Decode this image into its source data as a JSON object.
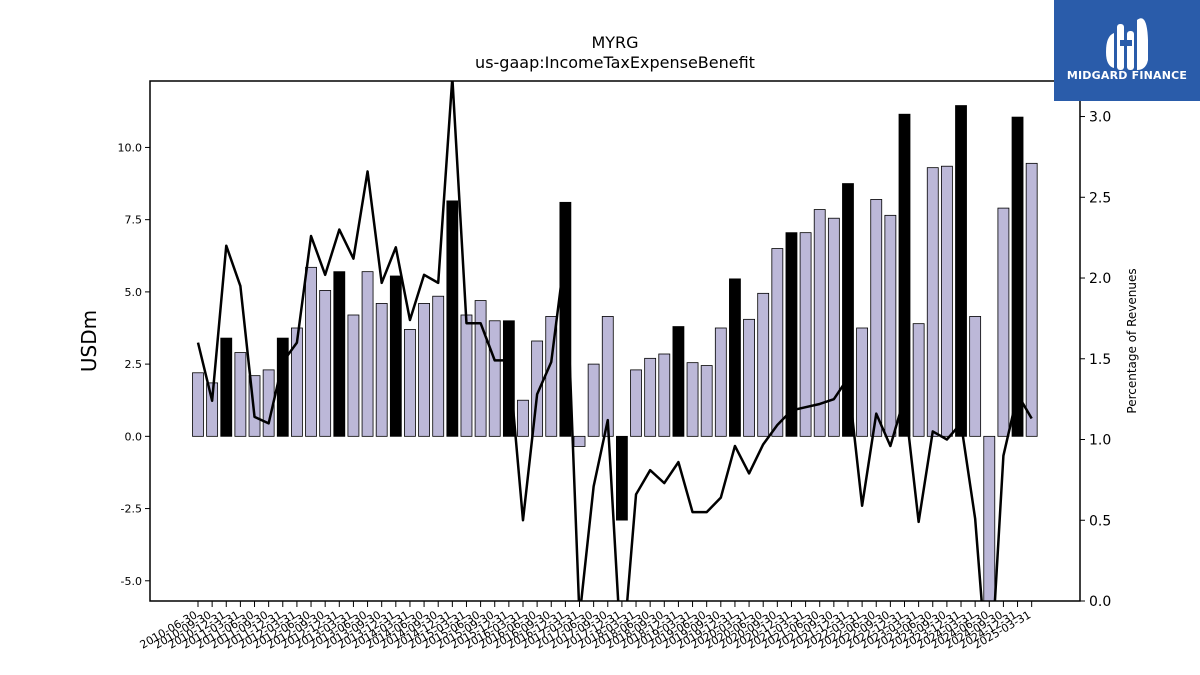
{
  "chart_data": {
    "type": "bar",
    "title": "MYRG",
    "subtitle": "us-gaap:IncomeTaxExpenseBenefit",
    "ylabel": "USDm",
    "ylabel_right": "Percentage of Revenues",
    "ylim": [
      -5.7,
      12.3
    ],
    "ylim_right": [
      0.0,
      3.22
    ],
    "yticks": [
      "-5.0",
      "-2.5",
      "0.0",
      "2.5",
      "5.0",
      "7.5",
      "10.0"
    ],
    "yticks_right": [
      "0.0",
      "0.5",
      "1.0",
      "1.5",
      "2.0",
      "2.5",
      "3.0"
    ],
    "categories": [
      "2010-06-30",
      "2010-09-30",
      "2010-12-31",
      "2011-03-31",
      "2011-06-30",
      "2011-09-30",
      "2011-12-31",
      "2012-03-31",
      "2012-06-30",
      "2012-09-30",
      "2012-12-31",
      "2013-03-31",
      "2013-06-30",
      "2013-09-30",
      "2013-12-31",
      "2014-03-31",
      "2014-06-30",
      "2014-09-30",
      "2014-12-31",
      "2015-03-31",
      "2015-06-30",
      "2015-09-30",
      "2015-12-31",
      "2016-03-31",
      "2016-06-30",
      "2016-09-30",
      "2016-12-31",
      "2017-03-31",
      "2017-06-30",
      "2017-09-30",
      "2017-12-31",
      "2018-03-31",
      "2018-06-30",
      "2018-09-30",
      "2018-12-31",
      "2019-03-31",
      "2019-06-30",
      "2019-09-30",
      "2019-12-31",
      "2020-03-31",
      "2020-06-30",
      "2020-09-30",
      "2020-12-31",
      "2021-03-31",
      "2021-06-30",
      "2021-09-30",
      "2021-12-31",
      "2022-03-31",
      "2022-06-30",
      "2022-09-30",
      "2022-12-31",
      "2023-03-31",
      "2023-06-30",
      "2023-09-30",
      "2023-12-31",
      "2024-03-31",
      "2024-06-30",
      "2024-09-30",
      "2024-12-31",
      "2025-03-31"
    ],
    "xtick_labels": [
      "2010-06-30",
      "2010-09-30",
      "2010-12-31",
      "2011-03-31",
      "2011-06-30",
      "2011-09-30",
      "2011-12-31",
      "2012-03-31",
      "2012-06-30",
      "2012-09-30",
      "2012-12-31",
      "2013-03-31",
      "2013-06-30",
      "2013-09-30",
      "2013-12-31",
      "2014-03-31",
      "2014-06-30",
      "2014-09-30",
      "2014-12-31",
      "2015-03-31",
      "2015-06-30",
      "2015-09-30",
      "2015-12-31",
      "2016-03-31",
      "2016-06-30",
      "2016-09-30",
      "2016-12-31",
      "2017-03-31",
      "2017-06-30",
      "2017-09-30",
      "2017-12-31",
      "2018-03-31",
      "2018-06-30",
      "2018-09-30",
      "2018-12-31",
      "2019-03-31",
      "2019-06-30",
      "2019-09-30",
      "2019-12-31",
      "2020-03-31",
      "2020-06-30",
      "2020-09-30",
      "2020-12-31",
      "2021-03-31",
      "2021-06-30",
      "2021-09-30",
      "2021-12-31",
      "2022-03-31",
      "2022-06-30",
      "2022-09-30",
      "2022-12-31",
      "2023-03-31",
      "2023-06-30",
      "2023-09-30",
      "2023-12-31",
      "2024-03-31",
      "2024-06-30",
      "2024-09-30",
      "2024-12-31",
      "2025-03-31"
    ],
    "series": [
      {
        "type": "bar",
        "axis": "left",
        "values": [
          2.2,
          1.85,
          3.4,
          2.9,
          2.1,
          2.3,
          3.4,
          3.75,
          5.85,
          5.05,
          5.7,
          4.2,
          5.7,
          4.6,
          5.55,
          3.7,
          4.6,
          4.85,
          8.15,
          4.2,
          4.7,
          4.0,
          4.0,
          1.25,
          3.3,
          4.15,
          8.1,
          -0.35,
          2.5,
          4.15,
          -2.9,
          2.3,
          2.7,
          2.85,
          3.8,
          2.55,
          2.45,
          3.75,
          5.45,
          4.05,
          4.95,
          6.5,
          7.05,
          7.05,
          7.85,
          7.55,
          8.75,
          3.75,
          8.2,
          7.65,
          11.15,
          3.9,
          9.3,
          9.35,
          11.45,
          4.15,
          -6.2,
          7.9,
          11.05,
          9.45
        ],
        "highlight": [
          false,
          false,
          true,
          false,
          false,
          false,
          true,
          false,
          false,
          false,
          true,
          false,
          false,
          false,
          true,
          false,
          false,
          false,
          true,
          false,
          false,
          false,
          true,
          false,
          false,
          false,
          true,
          false,
          false,
          false,
          true,
          false,
          false,
          false,
          true,
          false,
          false,
          false,
          true,
          false,
          false,
          false,
          true,
          false,
          false,
          false,
          true,
          false,
          false,
          false,
          true,
          false,
          false,
          false,
          true,
          false,
          false,
          false,
          true,
          false
        ]
      },
      {
        "type": "line",
        "axis": "right",
        "values": [
          1.6,
          1.24,
          2.2,
          1.95,
          1.14,
          1.1,
          1.48,
          1.6,
          2.26,
          2.02,
          2.3,
          2.12,
          2.66,
          1.97,
          2.19,
          1.74,
          2.02,
          1.97,
          3.24,
          1.72,
          1.72,
          1.49,
          1.49,
          0.5,
          1.28,
          1.48,
          2.17,
          -0.1,
          0.71,
          1.12,
          -0.4,
          0.66,
          0.81,
          0.73,
          0.86,
          0.55,
          0.55,
          0.64,
          0.96,
          0.79,
          0.97,
          1.09,
          1.18,
          1.2,
          1.22,
          1.25,
          1.38,
          0.59,
          1.16,
          0.96,
          1.26,
          0.49,
          1.05,
          1.0,
          1.1,
          0.51,
          -0.6,
          0.9,
          1.28,
          1.13
        ]
      }
    ],
    "colors": {
      "bar": "#bcb8d8",
      "bar_highlight": "#000000",
      "bar_edge": "#000000",
      "line": "#000000",
      "logo_bg": "#2a5caa"
    },
    "grid": false,
    "legend": "none"
  },
  "logo": {
    "text": "MIDGARD FINANCE",
    "icon": "midgard-bars-icon"
  }
}
